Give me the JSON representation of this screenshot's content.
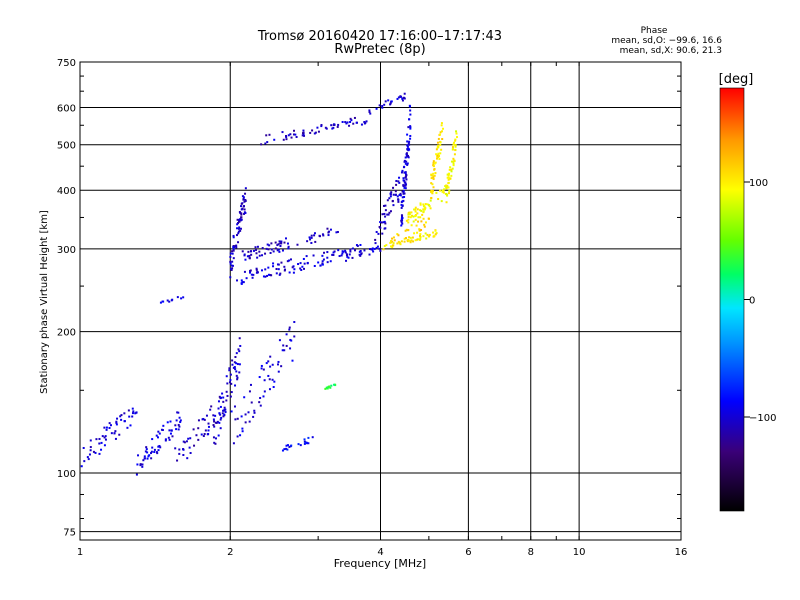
{
  "chart_data": {
    "type": "scatter",
    "title": "Tromsø 20160420 17:16:00–17:17:43",
    "subtitle": "RwPretec (8p)",
    "xlabel": "Frequency [MHz]",
    "ylabel": "Stationary phase Virtual Height [km]",
    "x_scale": "log",
    "y_scale": "log",
    "xlim": [
      1,
      16
    ],
    "ylim": [
      72,
      750
    ],
    "x_ticks": [
      1,
      2,
      4,
      6,
      8,
      10,
      16
    ],
    "x_tick_labels": [
      "1",
      "2",
      "4",
      "6",
      "8",
      "10",
      "16"
    ],
    "y_ticks": [
      75,
      100,
      200,
      300,
      400,
      500,
      600,
      750
    ],
    "y_tick_labels": [
      "75",
      "100",
      "200",
      "300",
      "400",
      "500",
      "600",
      "750"
    ],
    "grid": true,
    "stats": {
      "header": "Phase",
      "o_line": "mean, sd,O: −99.6, 16.6",
      "x_line": "mean, sd,X:  90.6, 21.3"
    },
    "colorbar": {
      "label": "[deg]",
      "range": [
        -180,
        180
      ],
      "tick_values": [
        100,
        0,
        -100
      ],
      "tick_labels": [
        "100",
        "0",
        "−100"
      ]
    },
    "series": [
      {
        "segments": [
          {
            "f0": 1.0,
            "f1": 1.3,
            "h0": 100,
            "h1": 145,
            "n": 55,
            "phase": -100
          },
          {
            "f0": 1.3,
            "f1": 1.6,
            "h0": 98,
            "h1": 140,
            "n": 60,
            "phase": -98
          },
          {
            "f0": 1.55,
            "f1": 1.95,
            "h0": 100,
            "h1": 150,
            "n": 55,
            "phase": -105
          },
          {
            "f0": 1.45,
            "f1": 1.62,
            "h0": 228,
            "h1": 240,
            "n": 10,
            "phase": -100
          },
          {
            "f0": 1.85,
            "f1": 2.1,
            "h0": 110,
            "h1": 200,
            "n": 55,
            "phase": -100
          },
          {
            "f0": 2.0,
            "f1": 2.15,
            "h0": 260,
            "h1": 415,
            "n": 70,
            "phase": -105
          },
          {
            "f0": 2.0,
            "f1": 2.7,
            "h0": 112,
            "h1": 215,
            "n": 60,
            "phase": -100
          },
          {
            "f0": 2.05,
            "f1": 4.0,
            "h0": 250,
            "h1": 315,
            "n": 120,
            "phase": -100
          },
          {
            "f0": 2.1,
            "f1": 3.3,
            "h0": 280,
            "h1": 340,
            "n": 70,
            "phase": -105
          },
          {
            "f0": 2.3,
            "f1": 3.8,
            "h0": 500,
            "h1": 580,
            "n": 60,
            "phase": -105
          },
          {
            "f0": 3.8,
            "f1": 4.5,
            "h0": 580,
            "h1": 645,
            "n": 25,
            "phase": -100
          },
          {
            "f0": 3.9,
            "f1": 4.5,
            "h0": 300,
            "h1": 460,
            "n": 60,
            "phase": -105
          },
          {
            "f0": 4.4,
            "f1": 4.6,
            "h0": 320,
            "h1": 640,
            "n": 80,
            "phase": -100
          },
          {
            "f0": 2.5,
            "f1": 2.95,
            "h0": 110,
            "h1": 120,
            "n": 20,
            "phase": -85
          },
          {
            "f0": 3.1,
            "f1": 3.25,
            "h0": 150,
            "h1": 155,
            "n": 12,
            "phase": 30
          }
        ]
      },
      {
        "segments": [
          {
            "f0": 4.0,
            "f1": 5.2,
            "h0": 298,
            "h1": 330,
            "n": 50,
            "phase": 100
          },
          {
            "f0": 4.5,
            "f1": 5.5,
            "h0": 330,
            "h1": 420,
            "n": 60,
            "phase": 95
          },
          {
            "f0": 5.05,
            "f1": 5.35,
            "h0": 380,
            "h1": 585,
            "n": 60,
            "phase": 105
          },
          {
            "f0": 5.4,
            "f1": 5.7,
            "h0": 360,
            "h1": 560,
            "n": 50,
            "phase": 95
          },
          {
            "f0": 4.2,
            "f1": 5.1,
            "h0": 300,
            "h1": 360,
            "n": 30,
            "phase": 110
          }
        ]
      }
    ]
  }
}
